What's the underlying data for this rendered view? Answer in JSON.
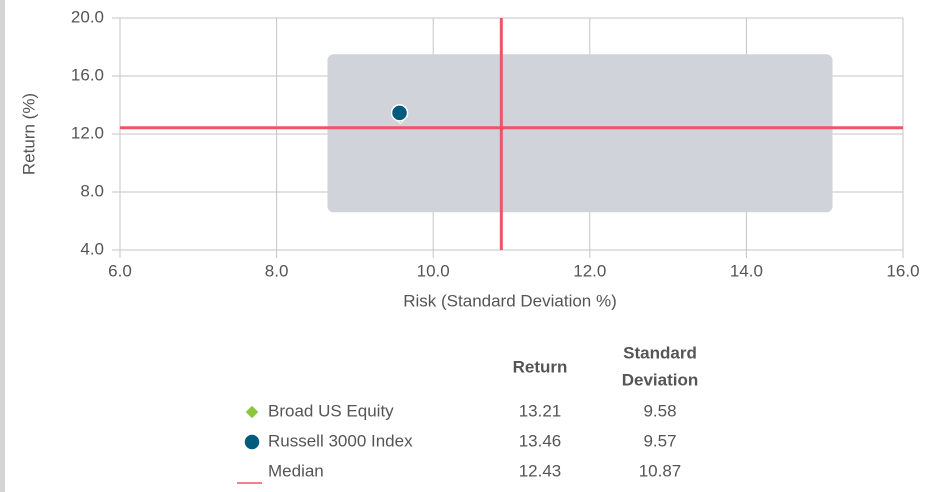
{
  "chart_data": {
    "type": "scatter",
    "xlabel": "Risk (Standard Deviation %)",
    "ylabel": "Return (%)",
    "xlim": [
      6,
      16
    ],
    "ylim": [
      4,
      20
    ],
    "xticks": [
      {
        "value": 6,
        "label": "6.0"
      },
      {
        "value": 8,
        "label": "8.0"
      },
      {
        "value": 10,
        "label": "10.0"
      },
      {
        "value": 12,
        "label": "12.0"
      },
      {
        "value": 14,
        "label": "14.0"
      },
      {
        "value": 16,
        "label": "16.0"
      }
    ],
    "yticks": [
      {
        "value": 4,
        "label": "4.0"
      },
      {
        "value": 8,
        "label": "8.0"
      },
      {
        "value": 12,
        "label": "12.0"
      },
      {
        "value": 16,
        "label": "16.0"
      },
      {
        "value": 20,
        "label": "20.0"
      }
    ],
    "grid": true,
    "universe": {
      "x": [
        8.65,
        15.1
      ],
      "y": [
        6.6,
        17.5
      ],
      "color": "#d0d3da"
    },
    "series": [
      {
        "name": "Broad US Equity",
        "color": "#8cc63f",
        "marker": "diamond",
        "x": [
          9.58
        ],
        "values": [
          13.21
        ]
      },
      {
        "name": "Russell 3000 Index",
        "color": "#005b7f",
        "marker": "circle",
        "x": [
          9.57
        ],
        "values": [
          13.46
        ]
      }
    ],
    "median": {
      "name": "Median",
      "color": "#ef5566",
      "x": 10.87,
      "y": 12.43
    },
    "table_headers": [
      [
        "Return"
      ],
      [
        "Standard",
        "Deviation"
      ]
    ]
  }
}
